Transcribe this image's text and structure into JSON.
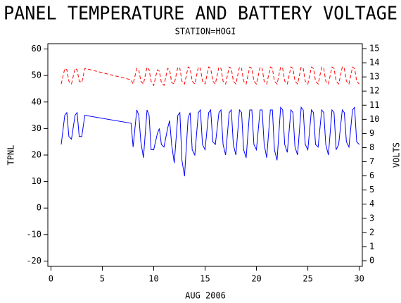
{
  "chart_data": {
    "type": "line",
    "title": "PANEL TEMPERATURE AND BATTERY VOLTAGE",
    "subtitle": "STATION=HOGI",
    "x_label": "AUG 2006",
    "y_label": "TPNL",
    "y2_label": "VOLTS",
    "xlim": [
      -0.3,
      30.3
    ],
    "xticks": [
      0,
      5,
      10,
      15,
      20,
      25,
      30
    ],
    "ylim": [
      -22,
      62
    ],
    "yticks": [
      -20,
      -10,
      0,
      10,
      20,
      30,
      40,
      50,
      60
    ],
    "y2lim": [
      -0.4,
      15.35
    ],
    "y2ticks": [
      0,
      1,
      2,
      3,
      4,
      5,
      6,
      7,
      8,
      9,
      10,
      11,
      12,
      13,
      14,
      15
    ],
    "x": [
      1,
      1.35,
      1.55,
      1.75,
      2,
      2.35,
      2.55,
      2.75,
      3,
      3.3,
      7.8,
      8,
      8.35,
      8.55,
      8.75,
      9,
      9.35,
      9.55,
      9.75,
      10,
      10.35,
      10.55,
      10.75,
      11,
      11.35,
      11.55,
      11.75,
      12,
      12.35,
      12.55,
      12.75,
      13,
      13.35,
      13.55,
      13.75,
      14,
      14.35,
      14.55,
      14.75,
      15,
      15.35,
      15.55,
      15.75,
      16,
      16.35,
      16.55,
      16.75,
      17,
      17.35,
      17.55,
      17.75,
      18,
      18.35,
      18.55,
      18.75,
      19,
      19.35,
      19.55,
      19.75,
      20,
      20.35,
      20.55,
      20.75,
      21,
      21.35,
      21.55,
      21.75,
      22,
      22.35,
      22.55,
      22.75,
      23,
      23.35,
      23.55,
      23.75,
      24,
      24.35,
      24.55,
      24.75,
      25,
      25.35,
      25.55,
      25.75,
      26,
      26.35,
      26.55,
      26.75,
      27,
      27.35,
      27.55,
      27.75,
      28,
      28.35,
      28.55,
      28.75,
      29,
      29.35,
      29.55,
      29.75,
      30
    ],
    "series": [
      {
        "name": "TPNL",
        "color": "#0000ff",
        "line_style": "solid",
        "values": [
          24,
          35,
          36,
          27,
          26,
          35,
          36,
          27,
          27,
          35,
          32,
          23,
          37,
          35,
          25,
          19,
          37,
          35,
          22,
          22,
          28,
          30,
          24,
          23,
          30,
          33,
          24,
          17,
          35,
          36,
          18,
          12,
          34,
          36,
          22,
          20,
          36,
          37,
          24,
          22,
          36,
          37,
          25,
          24,
          36,
          37,
          24,
          20,
          36,
          37,
          24,
          20,
          37,
          36,
          22,
          19,
          37,
          37,
          24,
          22,
          37,
          37,
          24,
          19,
          37,
          37,
          22,
          18,
          38,
          37,
          24,
          21,
          37,
          36,
          23,
          20,
          38,
          37,
          24,
          22,
          37,
          36,
          24,
          23,
          37,
          36,
          24,
          20,
          37,
          36,
          22,
          24,
          37,
          36,
          25,
          23,
          37,
          38,
          25,
          24
        ]
      },
      {
        "name": "VOLTS",
        "color": "#ff0000",
        "line_style": "dashed",
        "axis": "y2",
        "values": [
          12.5,
          13.6,
          13.5,
          12.7,
          12.5,
          13.6,
          13.5,
          12.7,
          12.6,
          13.6,
          12.8,
          12.5,
          13.6,
          13.5,
          12.7,
          12.5,
          13.7,
          13.5,
          12.7,
          12.4,
          13.5,
          13.4,
          12.6,
          12.4,
          13.6,
          13.5,
          12.6,
          12.5,
          13.7,
          13.6,
          12.7,
          12.5,
          13.7,
          13.6,
          12.7,
          12.5,
          13.7,
          13.6,
          12.7,
          12.5,
          13.7,
          13.6,
          12.7,
          12.5,
          13.7,
          13.6,
          12.7,
          12.5,
          13.7,
          13.6,
          12.7,
          12.5,
          13.7,
          13.6,
          12.7,
          12.5,
          13.7,
          13.6,
          12.7,
          12.5,
          13.7,
          13.6,
          12.7,
          12.5,
          13.7,
          13.6,
          12.7,
          12.5,
          13.7,
          13.6,
          12.7,
          12.5,
          13.7,
          13.6,
          12.7,
          12.5,
          13.7,
          13.6,
          12.7,
          12.5,
          13.7,
          13.6,
          12.7,
          12.5,
          13.7,
          13.6,
          12.7,
          12.5,
          13.7,
          13.6,
          12.7,
          12.5,
          13.7,
          13.6,
          12.7,
          12.5,
          13.7,
          13.6,
          12.7,
          12.5
        ]
      }
    ]
  }
}
